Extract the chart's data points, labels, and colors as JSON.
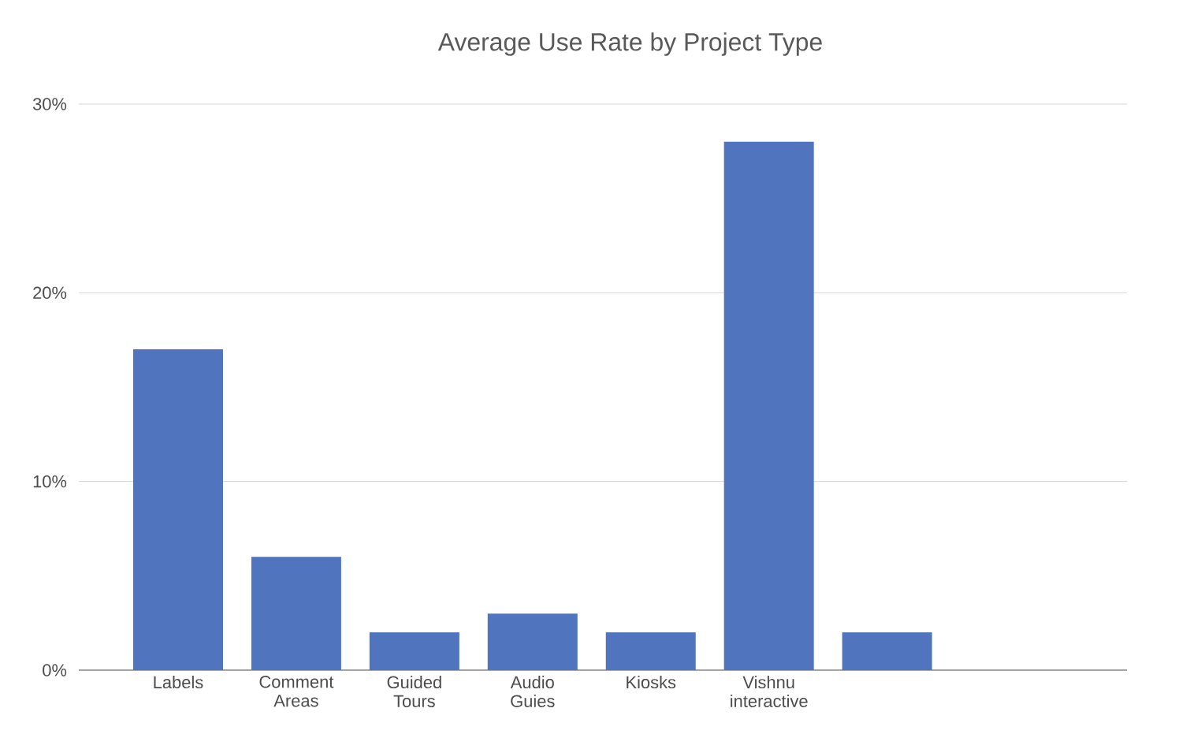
{
  "chart_data": {
    "type": "bar",
    "title": "Average Use Rate by Project Type",
    "categories": [
      "Labels",
      "Comment Areas",
      "Guided Tours",
      "Audio Guies",
      "Kiosks",
      "Vishnu interactive",
      null
    ],
    "values": [
      17,
      6,
      2,
      3,
      2,
      28,
      2
    ],
    "color": "#5074be",
    "ylim": [
      0,
      30
    ],
    "yticks": [
      {
        "value": 0,
        "label": "0%"
      },
      {
        "value": 10,
        "label": "10%"
      },
      {
        "value": 20,
        "label": "20%"
      },
      {
        "value": 30,
        "label": "30%"
      }
    ],
    "grid": "y"
  }
}
